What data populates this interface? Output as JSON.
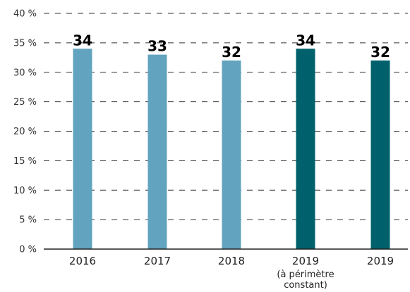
{
  "chart_data": {
    "type": "bar",
    "title": "",
    "xlabel": "",
    "ylabel": "",
    "ylim": [
      0,
      40
    ],
    "y_ticks": [
      {
        "value": 0,
        "label": "0 %"
      },
      {
        "value": 5,
        "label": "5 %"
      },
      {
        "value": 10,
        "label": "10 %"
      },
      {
        "value": 15,
        "label": "15 %"
      },
      {
        "value": 20,
        "label": "20 %"
      },
      {
        "value": 25,
        "label": "25 %"
      },
      {
        "value": 30,
        "label": "30 %"
      },
      {
        "value": 35,
        "label": "35 %"
      },
      {
        "value": 40,
        "label": "40 %"
      }
    ],
    "grid": "horizontal dashed",
    "legend": "none",
    "categories": [
      {
        "label": "2016",
        "sublabel": []
      },
      {
        "label": "2017",
        "sublabel": []
      },
      {
        "label": "2018",
        "sublabel": []
      },
      {
        "label": "2019",
        "sublabel": [
          "(à périmètre",
          "constant)"
        ]
      },
      {
        "label": "2019",
        "sublabel": []
      }
    ],
    "values": [
      34,
      33,
      32,
      34,
      32
    ],
    "data_labels": [
      "34",
      "33",
      "32",
      "34",
      "32"
    ],
    "bar_colors": [
      "#62a3bf",
      "#62a3bf",
      "#62a3bf",
      "#00616c",
      "#00616c"
    ]
  }
}
